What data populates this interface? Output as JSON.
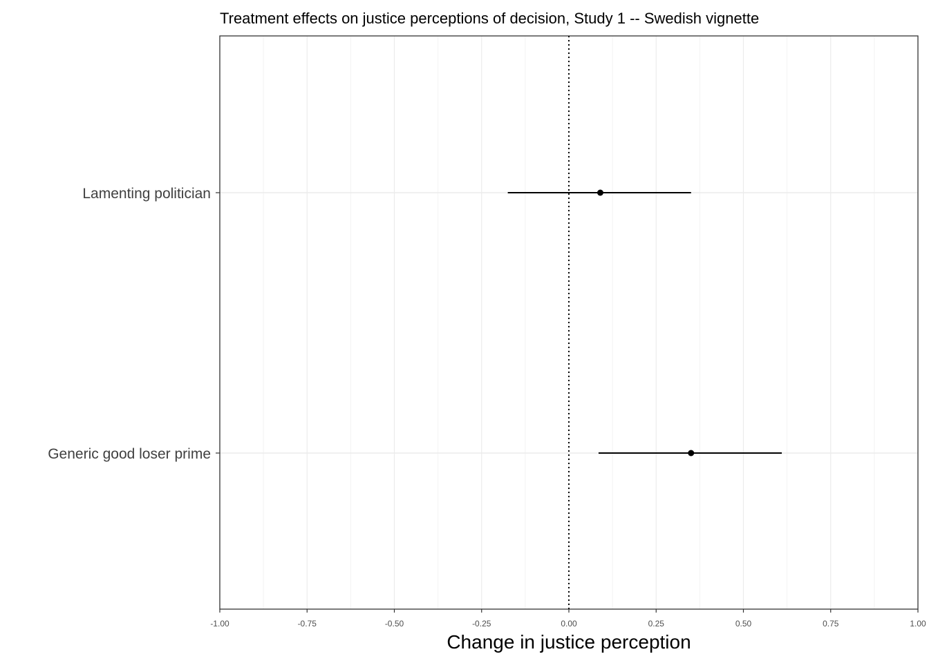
{
  "chart_data": {
    "type": "scatter",
    "subtype": "coefficient-plot",
    "title": "Treatment effects on justice perceptions of decision, Study 1 -- Swedish vignette",
    "xlabel": "Change in justice perception",
    "ylabel": "",
    "xlim": [
      -1.0,
      1.0
    ],
    "x_ticks": [
      "-1.00",
      "-0.75",
      "-0.50",
      "-0.25",
      "0.00",
      "0.25",
      "0.50",
      "0.75",
      "1.00"
    ],
    "categories": [
      "Lamenting politician",
      "Generic good loser prime"
    ],
    "estimates": [
      {
        "term": "Lamenting politician",
        "estimate": 0.09,
        "conf_low": -0.175,
        "conf_high": 0.35
      },
      {
        "term": "Generic good loser prime",
        "estimate": 0.35,
        "conf_low": 0.085,
        "conf_high": 0.61
      }
    ],
    "reference_line": {
      "x": 0,
      "style": "dotted"
    },
    "grid": true,
    "legend": "none",
    "colors": {
      "point": "#000000",
      "grid": "#ebebeb",
      "panel_border": "#333333"
    }
  }
}
